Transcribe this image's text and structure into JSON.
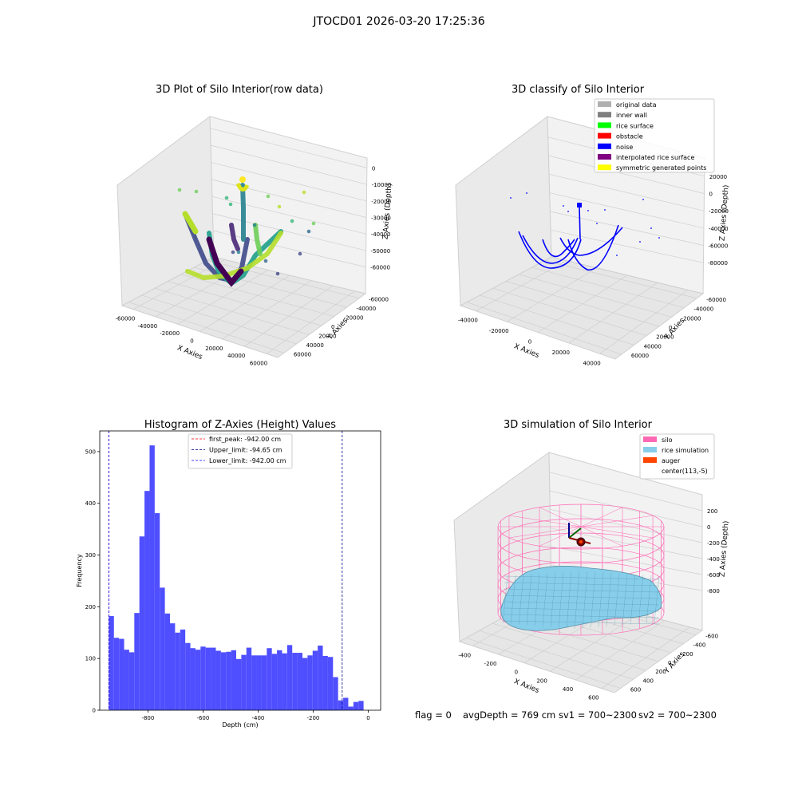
{
  "figure": {
    "suptitle": "JTOCD01 2026-03-20 17:25:36",
    "status": {
      "flag": "flag = 0",
      "avg_depth": "avgDepth = 769 cm",
      "sv1": "sv1 = 700~2300",
      "sv2": "sv2 = 700~2300"
    }
  },
  "chart_data": [
    {
      "type": "scatter",
      "projection": "3d",
      "title": "3D Plot of Silo Interior(row data)",
      "xlabel": "X Axies",
      "ylabel": "Y Axies",
      "zlabel": "Z Axies (Depth)",
      "x_ticks": [
        "-60000",
        "-40000",
        "-20000",
        "0",
        "20000",
        "40000",
        "60000"
      ],
      "y_ticks": [
        "-60000",
        "-40000",
        "-20000",
        "0",
        "20000",
        "40000",
        "60000"
      ],
      "z_ticks": [
        "0",
        "-10000",
        "-20000",
        "-30000",
        "-40000",
        "-50000",
        "-60000"
      ],
      "colormap": "viridis",
      "grid": true
    },
    {
      "type": "scatter",
      "projection": "3d",
      "title": "3D classify of Silo Interior",
      "xlabel": "X Axies",
      "ylabel": "Y Axies",
      "zlabel": "Z Axies (Depth)",
      "x_ticks": [
        "-40000",
        "-20000",
        "0",
        "20000",
        "40000"
      ],
      "y_ticks": [
        "-60000",
        "-40000",
        "-20000",
        "0",
        "20000",
        "40000",
        "60000"
      ],
      "z_ticks": [
        "20000",
        "0",
        "-20000",
        "-40000",
        "-60000",
        "-80000"
      ],
      "legend_position": "top-right",
      "legend": [
        {
          "label": "original data",
          "color": "#b0b0b0"
        },
        {
          "label": "inner wall",
          "color": "#808080"
        },
        {
          "label": "rice surface",
          "color": "#00ff00"
        },
        {
          "label": "obstacle",
          "color": "#ff0000"
        },
        {
          "label": "noise",
          "color": "#0000ff"
        },
        {
          "label": "interpolated rice surface",
          "color": "#800080"
        },
        {
          "label": "symmetric generated points",
          "color": "#ffff00"
        }
      ],
      "grid": true
    },
    {
      "type": "bar",
      "title": "Histogram of Z-Axies (Height) Values",
      "xlabel": "Depth (cm)",
      "ylabel": "Frequency",
      "xlim": [
        -975,
        45
      ],
      "ylim": [
        0,
        540
      ],
      "x_ticks": [
        -800,
        -600,
        -400,
        -200,
        0
      ],
      "y_ticks": [
        0,
        100,
        200,
        300,
        400,
        500
      ],
      "bar_color": "#4f4fff",
      "bin_width": 18.5,
      "bins": [
        {
          "x": -942,
          "y": 182
        },
        {
          "x": -923.5,
          "y": 140
        },
        {
          "x": -905,
          "y": 138
        },
        {
          "x": -886.5,
          "y": 117
        },
        {
          "x": -868,
          "y": 112
        },
        {
          "x": -849.5,
          "y": 188
        },
        {
          "x": -831,
          "y": 336
        },
        {
          "x": -812.5,
          "y": 424
        },
        {
          "x": -794,
          "y": 512
        },
        {
          "x": -775.5,
          "y": 381
        },
        {
          "x": -757,
          "y": 237
        },
        {
          "x": -738.5,
          "y": 187
        },
        {
          "x": -720,
          "y": 168
        },
        {
          "x": -701.5,
          "y": 150
        },
        {
          "x": -683,
          "y": 156
        },
        {
          "x": -664.5,
          "y": 130
        },
        {
          "x": -646,
          "y": 120
        },
        {
          "x": -627.5,
          "y": 117
        },
        {
          "x": -609,
          "y": 123
        },
        {
          "x": -590.5,
          "y": 121
        },
        {
          "x": -572,
          "y": 121
        },
        {
          "x": -553.5,
          "y": 115
        },
        {
          "x": -535,
          "y": 112
        },
        {
          "x": -516.5,
          "y": 113
        },
        {
          "x": -498,
          "y": 116
        },
        {
          "x": -479.5,
          "y": 99
        },
        {
          "x": -461,
          "y": 107
        },
        {
          "x": -442.5,
          "y": 121
        },
        {
          "x": -424,
          "y": 106
        },
        {
          "x": -405.5,
          "y": 106
        },
        {
          "x": -387,
          "y": 106
        },
        {
          "x": -368.5,
          "y": 120
        },
        {
          "x": -350,
          "y": 109
        },
        {
          "x": -331.5,
          "y": 116
        },
        {
          "x": -313,
          "y": 110
        },
        {
          "x": -294.5,
          "y": 126
        },
        {
          "x": -276,
          "y": 111
        },
        {
          "x": -257.5,
          "y": 111
        },
        {
          "x": -239,
          "y": 101
        },
        {
          "x": -220.5,
          "y": 106
        },
        {
          "x": -202,
          "y": 115
        },
        {
          "x": -183.5,
          "y": 125
        },
        {
          "x": -165,
          "y": 105
        },
        {
          "x": -146.5,
          "y": 103
        },
        {
          "x": -128,
          "y": 64
        },
        {
          "x": -109.5,
          "y": 19
        },
        {
          "x": -91,
          "y": 24
        },
        {
          "x": -72.5,
          "y": 7
        },
        {
          "x": -54,
          "y": 16
        },
        {
          "x": -35.5,
          "y": 18
        }
      ],
      "vlines": [
        {
          "value": -942.0,
          "color": "#ff0000",
          "label": "first_peak: -942.00 cm"
        },
        {
          "value": -94.65,
          "color": "#00008b",
          "label": "Upper_limit: -94.65 cm"
        },
        {
          "value": -942.0,
          "color": "#0000ff",
          "label": "Lower_limit: -942.00 cm"
        }
      ],
      "legend_position": "top-center",
      "grid": false
    },
    {
      "type": "surface",
      "projection": "3d",
      "title": "3D simulation of Silo Interior",
      "xlabel": "X Axies",
      "ylabel": "Y Axies",
      "zlabel": "Z Axies (Depth)",
      "x_ticks": [
        "-400",
        "-200",
        "0",
        "200",
        "400",
        "600"
      ],
      "y_ticks": [
        "-600",
        "-400",
        "-200",
        "0",
        "200",
        "400",
        "600"
      ],
      "z_ticks": [
        "200",
        "0",
        "-200",
        "-400",
        "-600",
        "-800"
      ],
      "legend_position": "top-right",
      "legend": [
        {
          "label": "silo",
          "color": "#ff69b4"
        },
        {
          "label": "rice simulation",
          "color": "#87ceeb"
        },
        {
          "label": "auger",
          "color": "#ff4500"
        },
        {
          "label": "center(113,-5)",
          "color": "#ffffff"
        }
      ],
      "grid": true
    }
  ]
}
